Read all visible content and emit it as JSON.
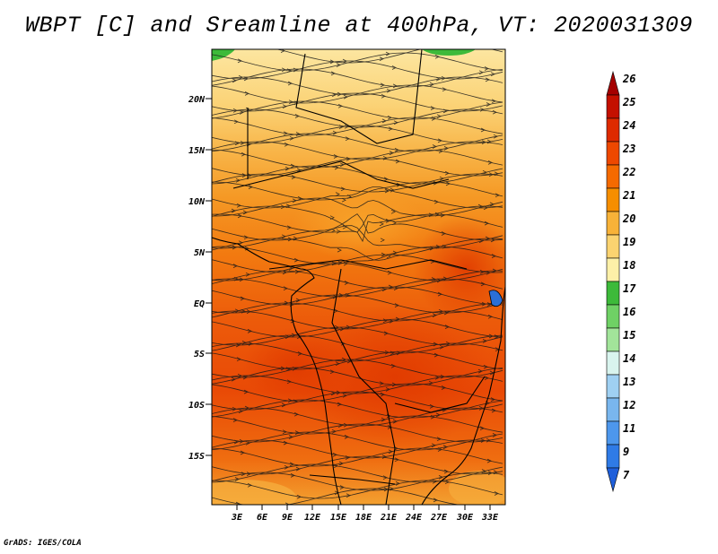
{
  "title": "WBPT [C] and Sreamline at 400hPa, VT: 2020031309",
  "footer": "GrADS: IGES/COLA",
  "map": {
    "lat_labels": [
      "20N",
      "15N",
      "10N",
      "5N",
      "EQ",
      "5S",
      "10S",
      "15S"
    ],
    "lon_labels": [
      "3E",
      "6E",
      "9E",
      "12E",
      "15E",
      "18E",
      "21E",
      "24E",
      "27E",
      "30E",
      "33E"
    ]
  },
  "colorbar": {
    "labels": [
      "26",
      "25",
      "24",
      "23",
      "22",
      "21",
      "20",
      "19",
      "18",
      "17",
      "16",
      "15",
      "14",
      "13",
      "12",
      "11",
      "9",
      "7"
    ],
    "colors": [
      "#a50000",
      "#c41000",
      "#de2a00",
      "#ee4800",
      "#f56a00",
      "#f68e00",
      "#f8b238",
      "#fbd370",
      "#fdf0a8",
      "#3dba3a",
      "#6fd165",
      "#a2e49a",
      "#d9f4ee",
      "#9fd0f2",
      "#79b6ee",
      "#4d97ec",
      "#2f7be6",
      "#1f5fdb"
    ]
  }
}
